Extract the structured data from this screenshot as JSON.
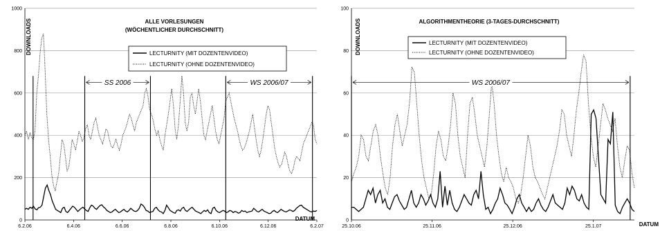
{
  "chart_data": [
    {
      "type": "line",
      "title": [
        "ALLE VORLESUNGEN",
        "(WÖCHENTLICHER DURCHSCHNITT)"
      ],
      "ylabel": "DOWNLOADS",
      "xlabel": "DATUM",
      "ylim": [
        0,
        1000
      ],
      "yticks": [
        "0",
        "200",
        "400",
        "600",
        "800",
        "1000"
      ],
      "xticks": [
        "6.2.06",
        "6.4.06",
        "6.6.06",
        "6.8.06",
        "6.10.06",
        "6.12.06",
        "6.2.07"
      ],
      "grid": true,
      "legend": "top-center",
      "series": [
        {
          "name": "LECTURNITY (MIT DOZENTENVIDEO)",
          "style": "solid",
          "values": [
            50,
            55,
            50,
            60,
            55,
            65,
            52,
            48,
            58,
            60,
            70,
            110,
            150,
            165,
            140,
            120,
            90,
            70,
            50,
            45,
            40,
            35,
            55,
            60,
            40,
            35,
            45,
            55,
            65,
            60,
            50,
            40,
            48,
            55,
            60,
            52,
            45,
            40,
            58,
            70,
            65,
            55,
            50,
            60,
            68,
            72,
            62,
            55,
            45,
            40,
            35,
            38,
            45,
            50,
            42,
            35,
            38,
            45,
            50,
            42,
            38,
            45,
            55,
            48,
            42,
            40,
            45,
            55,
            75,
            70,
            60,
            45,
            42,
            35,
            38,
            40,
            55,
            60,
            48,
            40,
            38,
            30,
            45,
            70,
            58,
            45,
            40,
            35,
            32,
            45,
            48,
            42,
            55,
            60,
            45,
            40,
            48,
            55,
            60,
            50,
            42,
            38,
            35,
            30,
            38,
            45,
            40,
            48,
            35,
            30,
            55,
            60,
            45,
            38,
            35,
            40,
            45,
            42,
            35,
            38,
            45,
            42,
            35,
            40,
            38,
            32,
            35,
            45,
            40,
            42,
            35,
            38,
            40,
            42,
            55,
            48,
            40,
            38,
            45,
            50,
            42,
            38,
            35,
            30,
            32,
            40,
            45,
            38,
            35,
            42,
            50,
            45,
            40,
            38,
            42,
            48,
            45,
            40,
            45,
            55,
            62,
            68,
            70,
            60,
            55,
            50,
            45,
            40,
            38,
            42,
            40,
            45
          ]
        },
        {
          "name": "LECTURNITY (OHNE DOZENTENVIDEO)",
          "style": "dotted",
          "values": [
            400,
            420,
            380,
            410,
            390,
            380,
            420,
            600,
            680,
            790,
            860,
            880,
            700,
            500,
            380,
            300,
            210,
            160,
            140,
            180,
            220,
            300,
            380,
            360,
            300,
            230,
            250,
            310,
            380,
            360,
            330,
            370,
            420,
            400,
            370,
            390,
            430,
            450,
            400,
            380,
            420,
            460,
            480,
            440,
            400,
            380,
            360,
            390,
            430,
            420,
            380,
            350,
            340,
            360,
            380,
            350,
            330,
            360,
            400,
            420,
            440,
            470,
            500,
            480,
            450,
            420,
            460,
            480,
            500,
            520,
            540,
            600,
            620,
            580,
            520,
            500,
            470,
            430,
            400,
            420,
            380,
            350,
            330,
            400,
            450,
            500,
            560,
            620,
            540,
            430,
            380,
            450,
            560,
            680,
            600,
            460,
            420,
            460,
            580,
            600,
            540,
            500,
            560,
            620,
            560,
            480,
            400,
            380,
            420,
            460,
            500,
            540,
            480,
            420,
            380,
            360,
            400,
            440,
            480,
            560,
            580,
            600,
            560,
            520,
            480,
            450,
            420,
            380,
            350,
            330,
            340,
            360,
            390,
            420,
            460,
            500,
            440,
            380,
            330,
            300,
            330,
            380,
            440,
            500,
            540,
            520,
            460,
            400,
            340,
            300,
            270,
            250,
            260,
            290,
            320,
            300,
            260,
            230,
            220,
            240,
            280,
            300,
            290,
            280,
            320,
            360,
            380,
            400,
            420,
            440,
            460,
            450,
            380,
            360
          ]
        }
      ],
      "annotations": [
        {
          "label": "SS 2006",
          "from_x": 0.25,
          "to_x": 0.47
        },
        {
          "label": "WS 2006/07",
          "from_x": 0.73,
          "to_x": 1.0
        }
      ]
    },
    {
      "type": "line",
      "title": [
        "ALGORITHMENTHEORIE (3-TAGES-DURCHSCHNITT)"
      ],
      "ylabel": "DOWNLOADS",
      "xlabel": "DATUM",
      "ylim": [
        0,
        100
      ],
      "yticks": [
        "0",
        "20",
        "40",
        "60",
        "80",
        "100"
      ],
      "xticks": [
        "25.10.06",
        "25.11.06",
        "25.12.06",
        "25.1.07"
      ],
      "grid": true,
      "legend": "top-center",
      "series": [
        {
          "name": "LECTURNITY (MIT DOZENTENVIDEO)",
          "style": "solid",
          "values": [
            6,
            6,
            5,
            4,
            5,
            6,
            10,
            14,
            12,
            15,
            8,
            12,
            14,
            8,
            10,
            6,
            5,
            8,
            11,
            12,
            9,
            7,
            5,
            6,
            10,
            14,
            8,
            6,
            8,
            12,
            10,
            7,
            9,
            12,
            8,
            6,
            10,
            23,
            6,
            16,
            7,
            14,
            8,
            5,
            4,
            6,
            9,
            12,
            10,
            8,
            7,
            12,
            14,
            10,
            23,
            12,
            5,
            6,
            3,
            5,
            8,
            10,
            15,
            12,
            8,
            7,
            5,
            3,
            6,
            10,
            12,
            8,
            6,
            4,
            6,
            4,
            5,
            8,
            10,
            7,
            5,
            4,
            6,
            9,
            12,
            8,
            7,
            6,
            5,
            8,
            15,
            12,
            16,
            14,
            10,
            9,
            12,
            8,
            6,
            5,
            50,
            52,
            48,
            30,
            12,
            10,
            8,
            38,
            36,
            51,
            7,
            4,
            3,
            6,
            8,
            10,
            8,
            5,
            4
          ]
        },
        {
          "name": "LECTURNITY (OHNE DOZENTENVIDEO)",
          "style": "dotted",
          "values": [
            18,
            22,
            25,
            30,
            40,
            38,
            30,
            28,
            35,
            42,
            45,
            40,
            30,
            22,
            15,
            12,
            20,
            35,
            45,
            50,
            42,
            35,
            40,
            45,
            55,
            72,
            70,
            55,
            40,
            28,
            20,
            15,
            10,
            12,
            22,
            35,
            42,
            38,
            30,
            28,
            35,
            45,
            60,
            55,
            40,
            30,
            25,
            20,
            40,
            55,
            58,
            50,
            40,
            35,
            30,
            25,
            35,
            50,
            65,
            55,
            40,
            30,
            22,
            18,
            25,
            20,
            18,
            15,
            10,
            8,
            12,
            20,
            30,
            40,
            35,
            25,
            20,
            18,
            15,
            12,
            10,
            15,
            20,
            25,
            30,
            35,
            42,
            52,
            50,
            40,
            35,
            30,
            40,
            52,
            60,
            70,
            78,
            75,
            55,
            40,
            30,
            25,
            35,
            45,
            55,
            52,
            48,
            45,
            42,
            48,
            35,
            25,
            20,
            28,
            35,
            33,
            22,
            15
          ]
        }
      ],
      "annotations": [
        {
          "label": "WS 2006/07",
          "from_x": 0.0,
          "to_x": 1.0
        }
      ]
    }
  ]
}
